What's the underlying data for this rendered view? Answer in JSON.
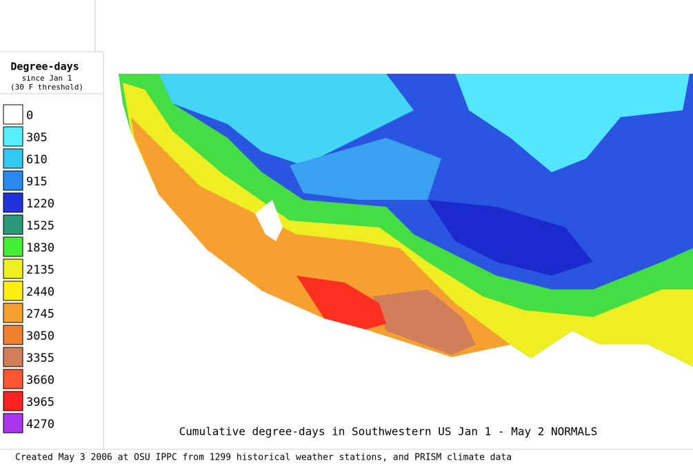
{
  "legend": {
    "title": "Degree-days",
    "subtitle": [
      "since Jan 1",
      "(30 F threshold)"
    ],
    "items": [
      {
        "label": 0,
        "color": "#ffffff"
      },
      {
        "label": 305,
        "color": "#55eeff"
      },
      {
        "label": 610,
        "color": "#33c8f2"
      },
      {
        "label": 915,
        "color": "#2a88ee"
      },
      {
        "label": 1220,
        "color": "#2233dd"
      },
      {
        "label": 1525,
        "color": "#2a9a7a"
      },
      {
        "label": 1830,
        "color": "#44ee33"
      },
      {
        "label": 2135,
        "color": "#eeee22"
      },
      {
        "label": 2440,
        "color": "#ffee11"
      },
      {
        "label": 2745,
        "color": "#f5a030"
      },
      {
        "label": 3050,
        "color": "#f08030"
      },
      {
        "label": 3355,
        "color": "#d07f5a"
      },
      {
        "label": 3660,
        "color": "#ff5533"
      },
      {
        "label": 3965,
        "color": "#ff2020"
      },
      {
        "label": 4270,
        "color": "#aa33ee"
      }
    ]
  },
  "caption": "Cumulative degree-days in Southwestern US Jan 1 - May 2 NORMALS",
  "footer": "Created May 3 2006 at OSU IPPC from 1299 historical weather stations, and PRISM climate data"
}
